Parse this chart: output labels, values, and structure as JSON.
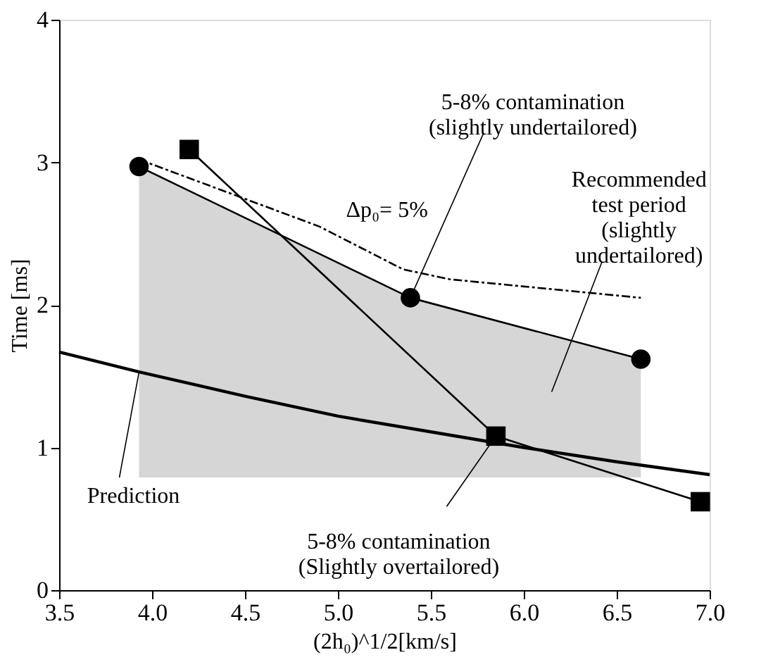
{
  "chart_data": {
    "type": "line",
    "xlabel": "(2h₀)^1/2[km/s]",
    "ylabel": "Time [ms]",
    "xlim": [
      3.5,
      7.0
    ],
    "ylim": [
      0,
      4
    ],
    "xticks": [
      3.5,
      {
        "value": 4,
        "label": "4.0"
      },
      4.5,
      {
        "value": 5,
        "label": "5.0"
      },
      5.5,
      {
        "value": 6,
        "label": "6.0"
      },
      6.5,
      {
        "value": 7,
        "label": "7.0"
      }
    ],
    "yticks": [
      0,
      1,
      2,
      3,
      4
    ],
    "grid": false,
    "legend": false,
    "series": [
      {
        "marker": "circle",
        "line_style": "solid",
        "color": "#000000",
        "x": [
          3.93,
          5.39,
          6.63
        ],
        "values": [
          2.97,
          2.05,
          1.62
        ],
        "lower": [
          0.79,
          0.79,
          0.79
        ],
        "upper": [
          2.97,
          2.05,
          1.62
        ]
      },
      {
        "marker": "square",
        "line_style": "solid",
        "color": "#000000",
        "x": [
          4.2,
          5.85,
          6.95
        ],
        "values": [
          3.09,
          1.08,
          0.62
        ]
      },
      {
        "name": "Δp₀= 5%",
        "marker": "none",
        "line_style": "dashed",
        "color": "#000000",
        "x": [
          3.93,
          4.9,
          5.35,
          5.6,
          6.63
        ],
        "values": [
          3.02,
          2.55,
          2.25,
          2.18,
          2.05
        ]
      },
      {
        "name": "Prediction",
        "marker": "none",
        "line_style": "solid",
        "color": "#000000",
        "x": [
          3.5,
          3.93,
          4.5,
          5.0,
          5.5,
          6.0,
          6.5,
          7.0
        ],
        "values": [
          1.67,
          1.53,
          1.36,
          1.22,
          1.11,
          1.0,
          0.9,
          0.81
        ]
      }
    ],
    "annotations": [
      {
        "text": "5-8% contamination\n(slightly undertailored)",
        "x": 5.39,
        "y": 2.05
      },
      "Recommended\ntest period\n(slightly\nundertailored)",
      {
        "text": "5-8% contamination\n(Slightly overtailored)",
        "x": 5.85,
        "y": 1.08
      }
    ]
  }
}
